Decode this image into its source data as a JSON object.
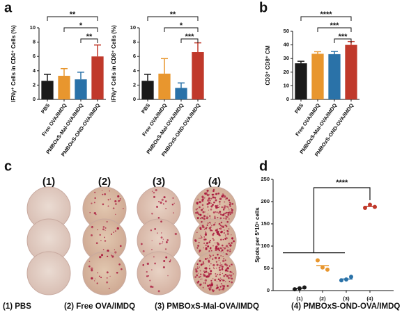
{
  "panel_letters": [
    "a",
    "b",
    "c",
    "d"
  ],
  "chart_data": [
    {
      "type": "bar",
      "ylabel": "IFNγ⁺ Cells in CD4⁺ Cells (%)",
      "categories": [
        "PBS",
        "Free OVA/IMDQ",
        "PMBOxS-Mal-OVA/IMDQ",
        "PMBOxS-OND-OVA/IMDQ"
      ],
      "values": [
        2.6,
        3.3,
        2.8,
        6.0
      ],
      "errors": [
        0.9,
        1.0,
        1.0,
        1.6
      ],
      "colors": [
        "#1a1a1a",
        "#e8962e",
        "#2a72a8",
        "#c0392b"
      ],
      "ylim": [
        0,
        10
      ],
      "yticks": [
        0,
        2,
        4,
        6,
        8,
        10
      ],
      "significance": [
        {
          "from": 0,
          "to": 3,
          "label": "**"
        },
        {
          "from": 1,
          "to": 3,
          "label": "*"
        },
        {
          "from": 2,
          "to": 3,
          "label": "**"
        }
      ]
    },
    {
      "type": "bar",
      "ylabel": "IFNγ⁺ Cells in CD8⁺ Cells (%)",
      "categories": [
        "PBS",
        "Free OVA/IMDQ",
        "PMBOxS-Mal-OVA/IMDQ",
        "PMBOxS-OND-OVA/IMDQ"
      ],
      "values": [
        2.6,
        3.6,
        1.6,
        6.6
      ],
      "errors": [
        0.9,
        2.1,
        0.7,
        1.3
      ],
      "colors": [
        "#1a1a1a",
        "#e8962e",
        "#2a72a8",
        "#c0392b"
      ],
      "ylim": [
        0,
        10
      ],
      "yticks": [
        0,
        2,
        4,
        6,
        8,
        10
      ],
      "significance": [
        {
          "from": 0,
          "to": 3,
          "label": "**"
        },
        {
          "from": 1,
          "to": 3,
          "label": "*"
        },
        {
          "from": 2,
          "to": 3,
          "label": "***"
        }
      ]
    },
    {
      "type": "bar",
      "ylabel": "CD3⁺ CD8⁺ CM",
      "categories": [
        "PBS",
        "Free OVA/IMDQ",
        "PMBOxS-Mal-OVA/IMDQ",
        "PMBOxS-OND-OVA/IMDQ"
      ],
      "values": [
        26.5,
        33.5,
        33.2,
        40
      ],
      "errors": [
        1.5,
        1.5,
        2,
        2.5
      ],
      "colors": [
        "#1a1a1a",
        "#e8962e",
        "#2a72a8",
        "#c0392b"
      ],
      "ylim": [
        0,
        50
      ],
      "yticks": [
        0,
        10,
        20,
        30,
        40,
        50
      ],
      "significance": [
        {
          "from": 0,
          "to": 3,
          "label": "****"
        },
        {
          "from": 1,
          "to": 3,
          "label": "***"
        },
        {
          "from": 2,
          "to": 3,
          "label": "***"
        }
      ]
    },
    {
      "type": "scatter",
      "ylabel": "Spots per 5*10⁵ cells",
      "categories": [
        "(1)",
        "(2)",
        "(3)",
        "(4)"
      ],
      "points": [
        [
          3,
          5,
          7
        ],
        [
          68,
          52,
          47
        ],
        [
          23,
          25,
          31
        ],
        [
          186,
          193,
          188
        ]
      ],
      "means": [
        5,
        56,
        26,
        189
      ],
      "colors": [
        "#1a1a1a",
        "#e8962e",
        "#2a72a8",
        "#c0392b"
      ],
      "ylim": [
        0,
        250
      ],
      "yticks": [
        0,
        50,
        100,
        150,
        200,
        250
      ],
      "group_line": 85,
      "significance": [
        {
          "from": [
            0,
            2
          ],
          "to": 3,
          "label": "****"
        }
      ]
    }
  ],
  "plates": {
    "columns": [
      "(1)",
      "(2)",
      "(3)",
      "(4)"
    ],
    "legend": [
      "(1) PBS",
      "(2) Free OVA/IMDQ",
      "(3) PMBOxS-Mal-OVA/IMDQ",
      "(4) PMBOxS-OND-OVA/IMDQ"
    ]
  }
}
